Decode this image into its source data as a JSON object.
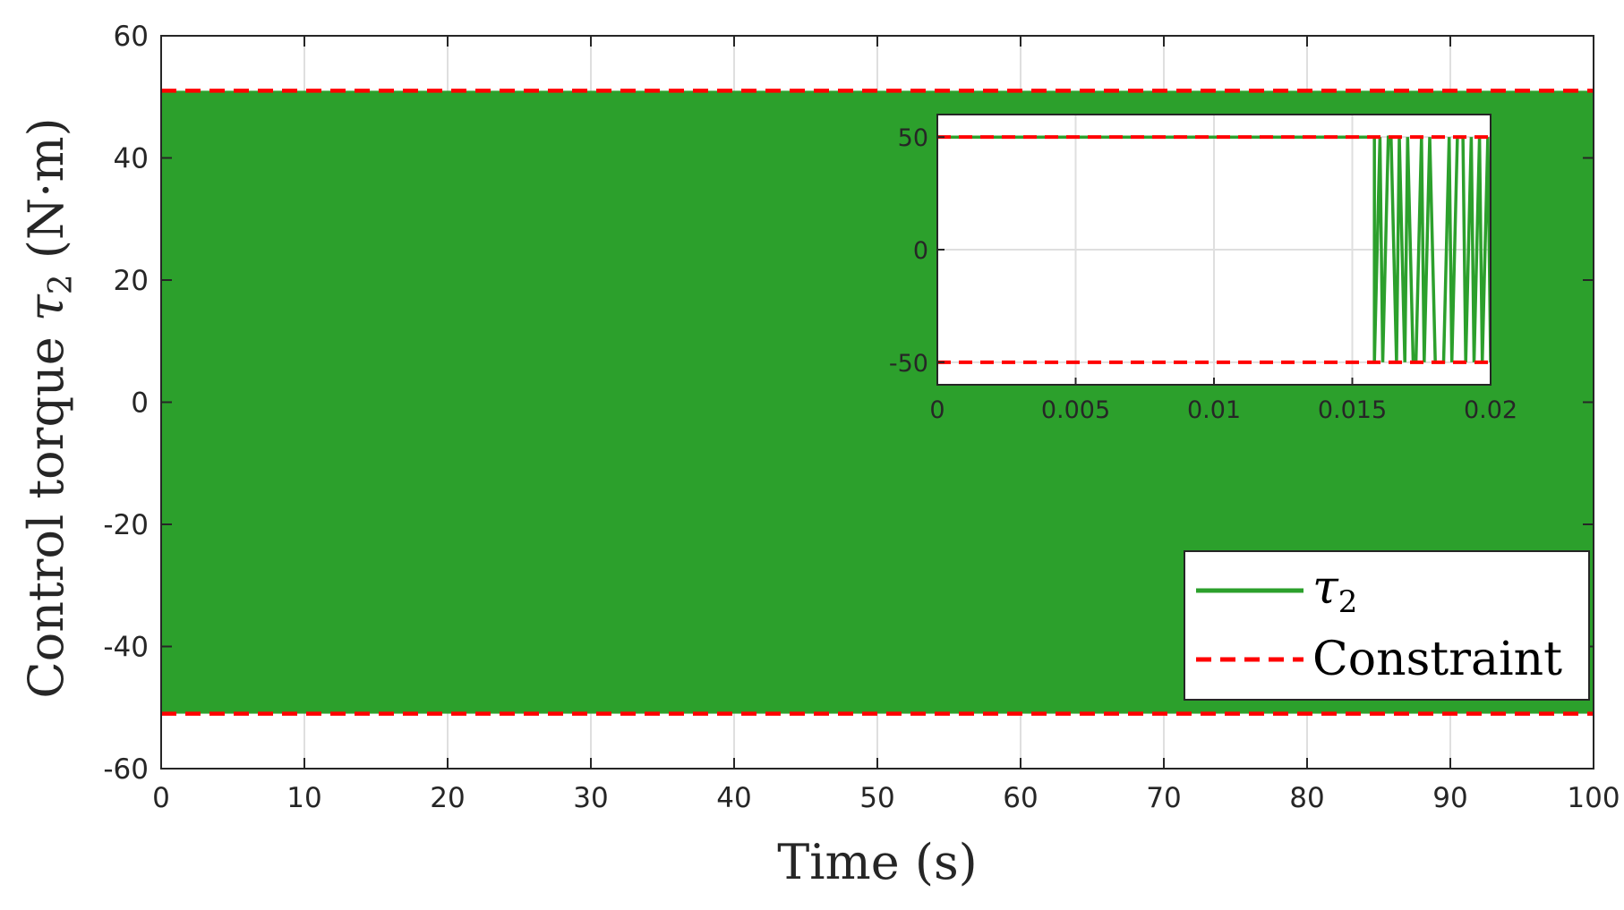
{
  "colors": {
    "signal": "#2ca02c",
    "constraint": "#ff0000",
    "grid": "#dfdfdf",
    "axis": "#262626"
  },
  "chart_data": [
    {
      "type": "line",
      "xlabel": "Time (s)",
      "ylabel": {
        "prefix": "Control torque ",
        "symbol": "τ",
        "subscript": "2",
        "units": " (N·m)"
      },
      "xlim": [
        0,
        100
      ],
      "ylim": [
        -60,
        60
      ],
      "x_ticks": [
        0,
        10,
        20,
        30,
        40,
        50,
        60,
        70,
        80,
        90,
        100
      ],
      "x_tick_labels": [
        "0",
        "10",
        "20",
        "30",
        "40",
        "50",
        "60",
        "70",
        "80",
        "90",
        "100"
      ],
      "y_ticks": [
        -60,
        -40,
        -20,
        0,
        20,
        40,
        60
      ],
      "y_tick_labels": [
        "-60",
        "-40",
        "-20",
        "0",
        "20",
        "40",
        "60"
      ],
      "grid": true,
      "legend_position": "bottom-right",
      "legend": [
        {
          "symbol": "τ",
          "subscript": "2",
          "style": "solid"
        },
        {
          "label": "Constraint",
          "style": "dashed"
        }
      ],
      "series": [
        {
          "style": "filled-oscillation",
          "x_range": [
            0,
            100
          ],
          "y_range": [
            -51,
            51
          ]
        },
        {
          "style": "dashed",
          "values": [
            51
          ]
        },
        {
          "style": "dashed",
          "values": [
            -51
          ]
        }
      ]
    },
    {
      "type": "line",
      "position": "inset",
      "xlim": [
        0,
        0.02
      ],
      "ylim": [
        -60,
        60
      ],
      "x_ticks": [
        0,
        0.005,
        0.01,
        0.015,
        0.02
      ],
      "x_tick_labels": [
        "0",
        "0.005",
        "0.01",
        "0.015",
        "0.02"
      ],
      "y_ticks": [
        -50,
        0,
        50
      ],
      "y_tick_labels": [
        "-50",
        "0",
        "50"
      ],
      "grid": true,
      "series": [
        {
          "style": "solid",
          "x": [
            0,
            0.0158,
            0.0158,
            0.016,
            0.0161,
            0.0163,
            0.0164,
            0.0166,
            0.0167,
            0.0169,
            0.017,
            0.0172,
            0.0173,
            0.0175,
            0.0176,
            0.0178,
            0.018,
            0.0182,
            0.0183,
            0.0185,
            0.0186,
            0.0188,
            0.019,
            0.0191,
            0.0193,
            0.0194,
            0.0196,
            0.0197,
            0.0199,
            0.02
          ],
          "y": [
            50,
            50,
            -50,
            50,
            -50,
            50,
            50,
            -50,
            50,
            -50,
            50,
            -50,
            -50,
            50,
            -50,
            50,
            -50,
            -50,
            -50,
            50,
            -50,
            50,
            50,
            -50,
            50,
            -50,
            50,
            -50,
            50,
            -50
          ]
        },
        {
          "style": "dashed",
          "values": [
            50
          ]
        },
        {
          "style": "dashed",
          "values": [
            -50
          ]
        }
      ]
    }
  ]
}
